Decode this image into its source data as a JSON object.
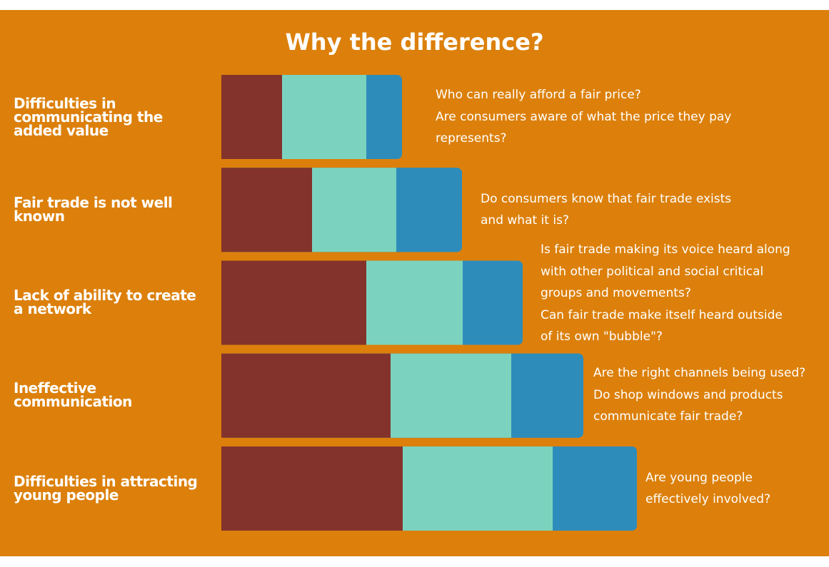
{
  "chart_data": {
    "type": "bar",
    "orientation": "horizontal",
    "stacked": true,
    "title": "Why the difference?",
    "categories": [
      "Difficulties in communicating the added value",
      "Fair trade is not well known",
      "Lack of ability to create a network",
      "Ineffective communication",
      "Difficulties in attracting young people"
    ],
    "series": [
      {
        "color": "#83332b",
        "values": [
          85,
          127,
          203,
          237,
          254
        ]
      },
      {
        "color": "#7bd3bf",
        "values": [
          118,
          118,
          135,
          169,
          210
        ]
      },
      {
        "color": "#2e8cbb",
        "values": [
          50,
          92,
          84,
          101,
          118
        ]
      }
    ],
    "annotations": [
      "Who can really afford a fair price?\nAre consumers aware of what the price they pay\nrepresents?",
      "Do consumers know that fair trade exists\nand what it is?",
      "Is fair trade making its voice heard along\nwith other political and social critical\ngroups and movements?\nCan fair trade make itself heard outside\nof its own \"bubble\"?",
      "Are the right channels being used?\nDo shop windows and products\ncommunicate fair trade?",
      "Are young people\neffectively involved?"
    ],
    "legend": false,
    "grid": false,
    "axes": false
  },
  "colors": {
    "background": "#dc800b",
    "text": "#ffffff"
  }
}
